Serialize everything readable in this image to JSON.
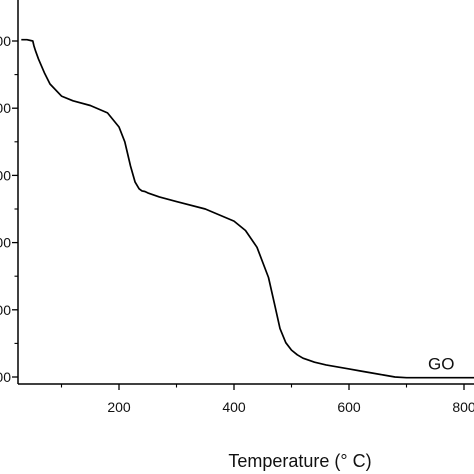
{
  "chart_data": {
    "type": "line",
    "xlabel": "Temperature (° C)",
    "ylabel": "",
    "title": "",
    "xlim": [
      30,
      820
    ],
    "ylim": [
      7,
      107
    ],
    "x_ticks": [
      200,
      400,
      600,
      800
    ],
    "x_tick_labels": [
      "200",
      "400",
      "600",
      "800"
    ],
    "y_ticks": [
      100,
      90,
      80,
      70,
      60,
      50
    ],
    "y_tick_labels": [
      "00",
      "00",
      "00",
      "00",
      "00",
      "00"
    ],
    "grid": false,
    "series": [
      {
        "name": "GO",
        "color": "#000000",
        "x": [
          30,
          40,
          50,
          52,
          55,
          60,
          70,
          80,
          100,
          120,
          150,
          180,
          200,
          210,
          220,
          228,
          235,
          240,
          245,
          250,
          270,
          300,
          350,
          400,
          420,
          440,
          460,
          470,
          480,
          490,
          500,
          510,
          520,
          530,
          540,
          550,
          560,
          580,
          600,
          620,
          640,
          660,
          680,
          700,
          750,
          800,
          820
        ],
        "y": [
          100.2,
          100.2,
          100.0,
          99.3,
          98.5,
          97.3,
          95.3,
          93.6,
          91.8,
          91.1,
          90.4,
          89.3,
          87.2,
          85.0,
          81.4,
          79.0,
          78.0,
          77.7,
          77.6,
          77.4,
          76.8,
          76.1,
          75.0,
          73.2,
          71.8,
          69.3,
          64.8,
          61.0,
          57.2,
          55.1,
          54.0,
          53.3,
          52.8,
          52.5,
          52.2,
          52.0,
          51.8,
          51.5,
          51.2,
          50.9,
          50.6,
          50.3,
          50.0,
          49.9,
          49.9,
          49.9,
          49.9
        ]
      }
    ],
    "annotations": [
      {
        "text": "GO",
        "x": 720,
        "y": 52
      }
    ]
  }
}
